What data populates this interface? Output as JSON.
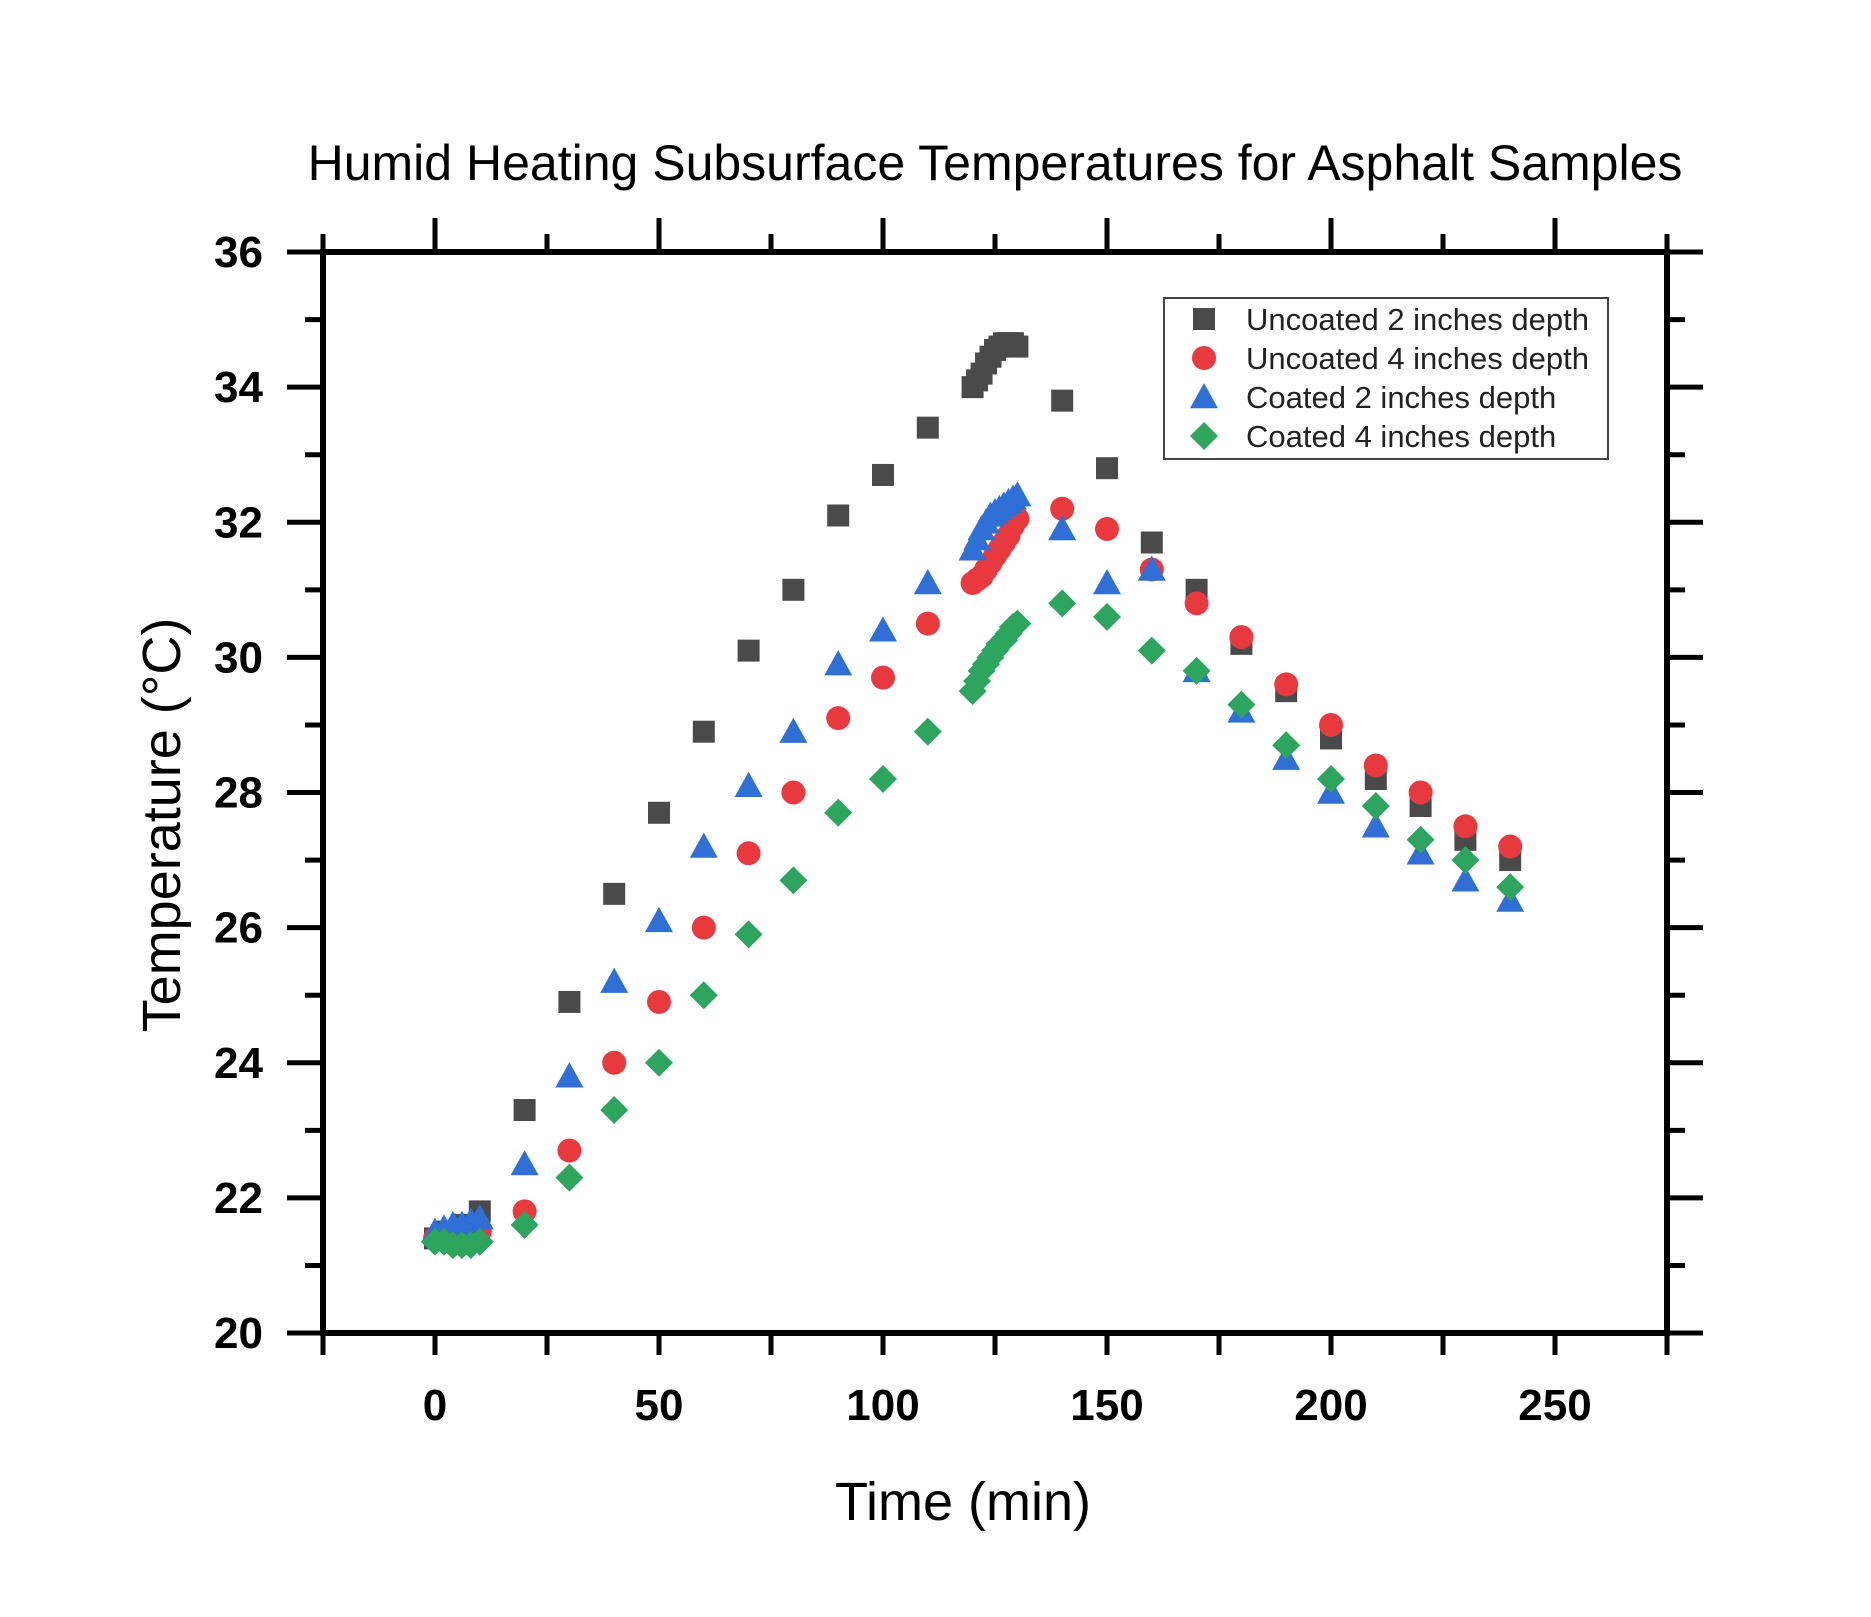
{
  "chart_data": {
    "type": "scatter",
    "title": "Humid Heating Subsurface Temperatures for Asphalt Samples",
    "xlabel": "Time (min)",
    "ylabel": "Temperature (°C)",
    "xlim": [
      -25,
      275
    ],
    "ylim": [
      20,
      36
    ],
    "xticks": [
      0,
      50,
      100,
      150,
      200,
      250
    ],
    "yticks": [
      20,
      22,
      24,
      26,
      28,
      30,
      32,
      34,
      36
    ],
    "xtick_labels": [
      "0",
      "50",
      "100",
      "150",
      "200",
      "250"
    ],
    "ytick_labels": [
      "20",
      "22",
      "24",
      "26",
      "28",
      "30",
      "32",
      "34",
      "36"
    ],
    "grid": false,
    "legend_position": "top-right",
    "series": [
      {
        "name": "Uncoated 2 inches depth",
        "marker": "square",
        "color": "#4a4a4a",
        "x": [
          0,
          2,
          4,
          6,
          8,
          10,
          20,
          30,
          40,
          50,
          60,
          70,
          80,
          90,
          100,
          110,
          120,
          121,
          122,
          123,
          124,
          125,
          126,
          127,
          128,
          129,
          130,
          140,
          150,
          160,
          170,
          180,
          190,
          200,
          210,
          220,
          230,
          240
        ],
        "y": [
          21.4,
          21.5,
          21.5,
          21.6,
          21.6,
          21.8,
          23.3,
          24.9,
          26.5,
          27.7,
          28.9,
          30.1,
          31.0,
          32.1,
          32.7,
          33.4,
          34.0,
          34.1,
          34.2,
          34.35,
          34.45,
          34.55,
          34.6,
          34.65,
          34.65,
          34.65,
          34.6,
          33.8,
          32.8,
          31.7,
          31.0,
          30.2,
          29.5,
          28.8,
          28.2,
          27.8,
          27.3,
          27.0
        ]
      },
      {
        "name": "Uncoated 4 inches depth",
        "marker": "circle",
        "color": "#e8393f",
        "x": [
          0,
          2,
          4,
          6,
          8,
          10,
          20,
          30,
          40,
          50,
          60,
          70,
          80,
          90,
          100,
          110,
          120,
          121,
          122,
          123,
          124,
          125,
          126,
          127,
          128,
          129,
          130,
          140,
          150,
          160,
          170,
          180,
          190,
          200,
          210,
          220,
          230,
          240
        ],
        "y": [
          21.4,
          21.4,
          21.4,
          21.4,
          21.4,
          21.5,
          21.8,
          22.7,
          24.0,
          24.9,
          26.0,
          27.1,
          28.0,
          29.1,
          29.7,
          30.5,
          31.1,
          31.15,
          31.2,
          31.3,
          31.4,
          31.5,
          31.6,
          31.7,
          31.8,
          31.95,
          32.05,
          32.2,
          31.9,
          31.3,
          30.8,
          30.3,
          29.6,
          29.0,
          28.4,
          28.0,
          27.5,
          27.2
        ]
      },
      {
        "name": "Coated 2 inches depth",
        "marker": "triangle",
        "color": "#2f6fd6",
        "x": [
          0,
          2,
          4,
          6,
          8,
          10,
          20,
          30,
          40,
          50,
          60,
          70,
          80,
          90,
          100,
          110,
          120,
          121,
          122,
          123,
          124,
          125,
          126,
          127,
          128,
          129,
          130,
          140,
          150,
          160,
          170,
          180,
          190,
          200,
          210,
          220,
          230,
          240
        ],
        "y": [
          21.5,
          21.55,
          21.6,
          21.6,
          21.65,
          21.7,
          22.5,
          23.8,
          25.2,
          26.1,
          27.2,
          28.1,
          28.9,
          29.9,
          30.4,
          31.1,
          31.6,
          31.75,
          31.9,
          32.0,
          32.1,
          32.15,
          32.2,
          32.25,
          32.3,
          32.35,
          32.4,
          31.9,
          31.1,
          31.3,
          29.8,
          29.2,
          28.5,
          28.0,
          27.5,
          27.1,
          26.7,
          26.4
        ]
      },
      {
        "name": "Coated 4 inches depth",
        "marker": "diamond",
        "color": "#2ea55e",
        "x": [
          0,
          2,
          4,
          6,
          8,
          10,
          20,
          30,
          40,
          50,
          60,
          70,
          80,
          90,
          100,
          110,
          120,
          121,
          122,
          123,
          124,
          125,
          126,
          127,
          128,
          129,
          130,
          140,
          150,
          160,
          170,
          180,
          190,
          200,
          210,
          220,
          230,
          240
        ],
        "y": [
          21.35,
          21.35,
          21.3,
          21.3,
          21.3,
          21.35,
          21.6,
          22.3,
          23.3,
          24.0,
          25.0,
          25.9,
          26.7,
          27.7,
          28.2,
          28.9,
          29.5,
          29.65,
          29.8,
          29.9,
          30.0,
          30.1,
          30.2,
          30.25,
          30.35,
          30.45,
          30.5,
          30.8,
          30.6,
          30.1,
          29.8,
          29.3,
          28.7,
          28.2,
          27.8,
          27.3,
          27.0,
          26.6
        ]
      }
    ]
  }
}
